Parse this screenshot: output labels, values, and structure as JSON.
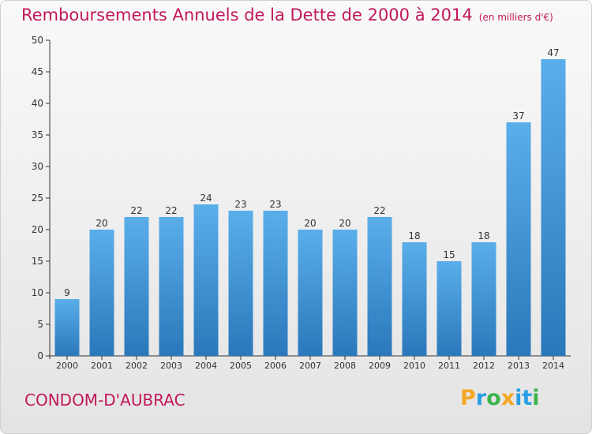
{
  "title": "Remboursements Annuels de la Dette de 2000 à 2014",
  "subtitle": "(en milliers d'€)",
  "town": "CONDOM-D'AUBRAC",
  "logo": {
    "text": "Proxiti",
    "letters": [
      "P",
      "r",
      "o",
      "x",
      "i",
      "t",
      "i"
    ],
    "colors": [
      "#f5a623",
      "#2a9ee5",
      "#3cb44b",
      "#f5a623",
      "#2a9ee5",
      "#2a9ee5",
      "#3cb44b"
    ]
  },
  "colors": {
    "title": "#c2185b",
    "bar_top": "#5aaeea",
    "bar_bottom": "#2a78bb"
  },
  "chart_data": {
    "type": "bar",
    "title": "Remboursements Annuels de la Dette de 2000 à 2014",
    "subtitle": "(en milliers d'€)",
    "categories": [
      "2000",
      "2001",
      "2002",
      "2003",
      "2004",
      "2005",
      "2006",
      "2007",
      "2008",
      "2009",
      "2010",
      "2011",
      "2012",
      "2013",
      "2014"
    ],
    "values": [
      9,
      20,
      22,
      22,
      24,
      23,
      23,
      20,
      20,
      22,
      18,
      15,
      18,
      37,
      47
    ],
    "ylim": [
      0,
      50
    ],
    "yticks": [
      0,
      5,
      10,
      15,
      20,
      25,
      30,
      35,
      40,
      45,
      50
    ],
    "xlabel": "",
    "ylabel": "",
    "grid": false,
    "data_labels": true
  }
}
